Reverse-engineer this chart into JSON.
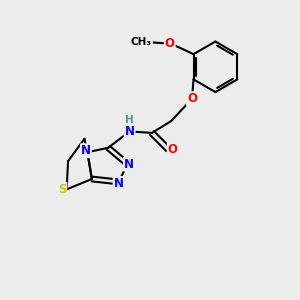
{
  "background_color": "#ececec",
  "bond_color": "#000000",
  "atom_colors": {
    "N": "#0000ff",
    "O": "#ff0000",
    "S": "#c8c800",
    "C": "#000000",
    "H": "#4a9a9a"
  },
  "figure_size": [
    3.0,
    3.0
  ],
  "dpi": 100,
  "bond_lw": 1.5,
  "font_size": 8.5,
  "xlim": [
    0,
    10
  ],
  "ylim": [
    0,
    10
  ]
}
